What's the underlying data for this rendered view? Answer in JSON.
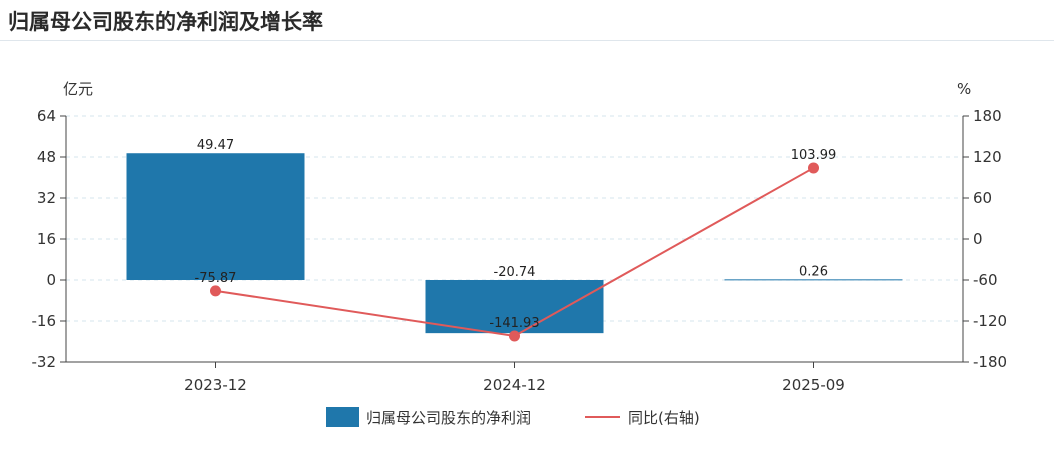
{
  "title": "归属母公司股东的净利润及增长率",
  "chart_data": {
    "type": "bar",
    "categories": [
      "2023-12",
      "2024-12",
      "2025-09"
    ],
    "series": [
      {
        "name": "归属母公司股东的净利润",
        "type": "bar",
        "axis": "left",
        "values": [
          49.47,
          -20.74,
          0.26
        ],
        "labels": [
          "49.47",
          "-20.74",
          "0.26"
        ],
        "color": "#1f77ab"
      },
      {
        "name": "同比(右轴)",
        "type": "line",
        "axis": "right",
        "values": [
          -75.87,
          -141.93,
          103.99
        ],
        "labels": [
          "-75.87",
          "-141.93",
          "103.99"
        ],
        "color": "#e05a5a"
      }
    ],
    "y_left": {
      "unit": "亿元",
      "ylim": [
        -32,
        64
      ],
      "ticks": [
        "64",
        "48",
        "32",
        "16",
        "0",
        "-16",
        "-32"
      ]
    },
    "y_right": {
      "unit": "%",
      "ylim": [
        -180,
        180
      ],
      "ticks": [
        "180",
        "120",
        "60",
        "0",
        "-60",
        "-120",
        "-180"
      ]
    },
    "grid": true,
    "legend_position": "bottom"
  }
}
